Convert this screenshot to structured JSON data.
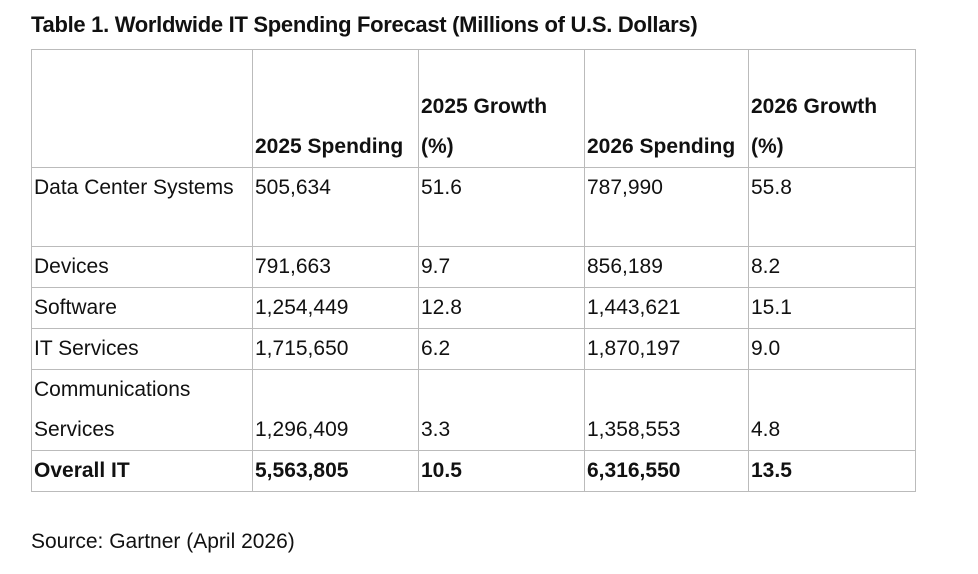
{
  "title": "Table 1. Worldwide IT Spending Forecast (Millions of U.S. Dollars)",
  "table": {
    "header": [
      "",
      "2025 Spending",
      "2025 Growth (%)",
      "2026 Spending",
      "2026 Growth (%)"
    ],
    "rows": [
      [
        "Data Center Systems",
        "505,634",
        "51.6",
        "787,990",
        "55.8"
      ],
      [
        "Devices",
        "791,663",
        "9.7",
        "856,189",
        "8.2"
      ],
      [
        "Software",
        "1,254,449",
        "12.8",
        "1,443,621",
        "15.1"
      ],
      [
        "IT Services",
        "1,715,650",
        "6.2",
        "1,870,197",
        "9.0"
      ],
      [
        "Communications Services",
        "1,296,409",
        "3.3",
        "1,358,553",
        "4.8"
      ],
      [
        "Overall IT",
        "5,563,805",
        "10.5",
        "6,316,550",
        "13.5"
      ]
    ]
  },
  "source": "Source: Gartner (April 2026)"
}
